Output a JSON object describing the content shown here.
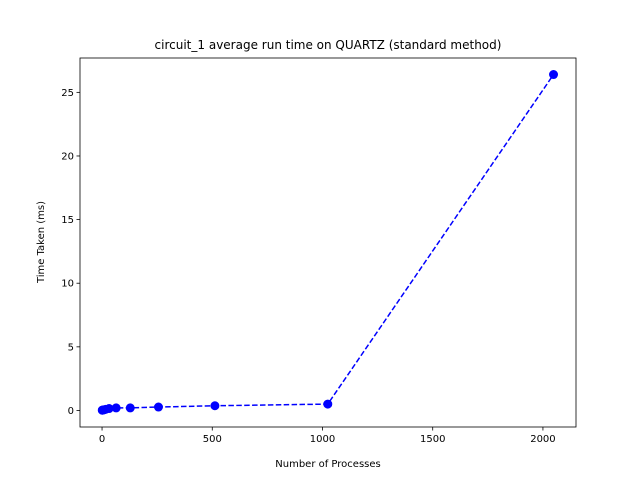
{
  "chart_data": {
    "type": "line",
    "title": "circuit_1 average run time on QUARTZ (standard method)",
    "xlabel": "Number of Processes",
    "ylabel": "Time Taken (ms)",
    "xlim": [
      -100,
      2150
    ],
    "ylim": [
      -1.3,
      27.7
    ],
    "xticks": [
      0,
      500,
      1000,
      1500,
      2000
    ],
    "yticks": [
      0,
      5,
      10,
      15,
      20,
      25
    ],
    "grid": false,
    "series": [
      {
        "x": [
          1,
          2,
          4,
          8,
          16,
          32,
          64,
          128,
          256,
          512,
          1024,
          2048
        ],
        "y": [
          0.02,
          0.03,
          0.04,
          0.05,
          0.09,
          0.15,
          0.2,
          0.2,
          0.27,
          0.37,
          0.5,
          26.4
        ],
        "color": "#0000ff",
        "linestyle": "dashed",
        "marker": "circle"
      }
    ]
  }
}
